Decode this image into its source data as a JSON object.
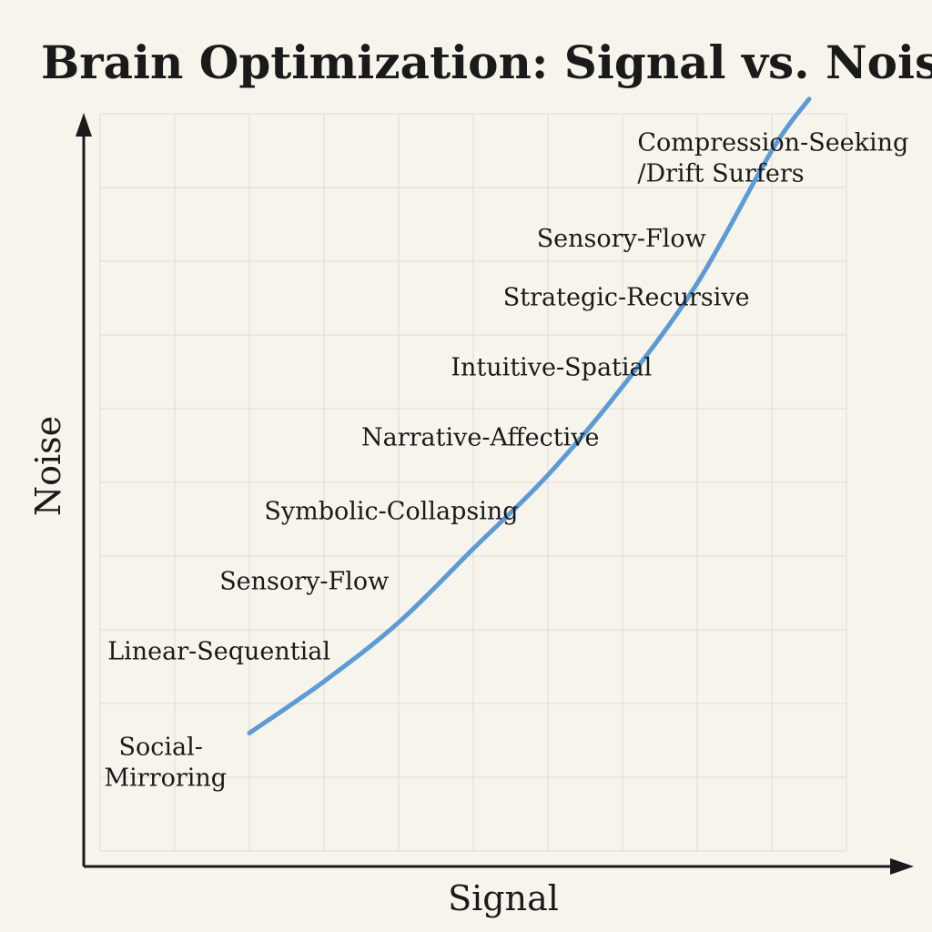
{
  "chart_data": {
    "type": "line",
    "title": "Brain Optimization: Signal vs. Noise",
    "xlabel": "Signal",
    "ylabel": "Noise",
    "grid": true,
    "series_color": "#5a9bd8",
    "curve": {
      "x": [
        2,
        3,
        4,
        5,
        6,
        7,
        8,
        9,
        9.5
      ],
      "y": [
        1.6,
        2.3,
        3.1,
        4.1,
        5.1,
        6.3,
        7.7,
        9.5,
        10.2
      ]
    },
    "annotations": [
      {
        "lines": [
          "Social-",
          "Mirroring"
        ],
        "x": 0.25,
        "y": 1.3
      },
      {
        "lines": [
          "Linear-Sequential"
        ],
        "x": 0.1,
        "y": 2.6
      },
      {
        "lines": [
          "Sensory-Flow"
        ],
        "x": 1.6,
        "y": 3.55
      },
      {
        "lines": [
          "Symbolic-Collapsing"
        ],
        "x": 2.2,
        "y": 4.5
      },
      {
        "lines": [
          "Narrative-Affective"
        ],
        "x": 3.5,
        "y": 5.5
      },
      {
        "lines": [
          "Intuitive-Spatial"
        ],
        "x": 4.7,
        "y": 6.45
      },
      {
        "lines": [
          "Strategic-Recursive"
        ],
        "x": 5.4,
        "y": 7.4
      },
      {
        "lines": [
          "Sensory-Flow"
        ],
        "x": 5.85,
        "y": 8.2
      },
      {
        "lines": [
          "Compression-Seeking",
          "/Drift Surfers"
        ],
        "x": 7.2,
        "y": 9.5
      }
    ]
  }
}
